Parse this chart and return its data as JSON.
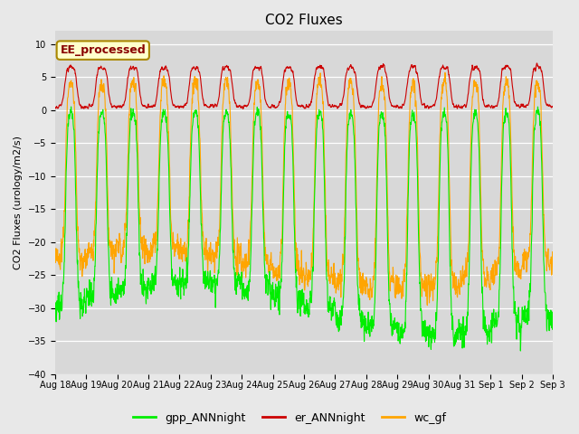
{
  "title": "CO2 Fluxes",
  "ylabel": "CO2 Fluxes (urology/m2/s)",
  "ylim": [
    -40,
    12
  ],
  "yticks": [
    -40,
    -35,
    -30,
    -25,
    -20,
    -15,
    -10,
    -5,
    0,
    5,
    10
  ],
  "fig_bg_color": "#e8e8e8",
  "plot_bg_color": "#d8d8d8",
  "n_days": 16,
  "points_per_day": 144,
  "gpp_color": "#00ee00",
  "er_color": "#cc0000",
  "wc_color": "#ffa500",
  "legend_labels": [
    "gpp_ANNnight",
    "er_ANNnight",
    "wc_gf"
  ],
  "annotation_text": "EE_processed",
  "annotation_color": "#880000",
  "annotation_bg": "#ffffcc",
  "annotation_border": "#aa8800",
  "title_fontsize": 11,
  "axis_fontsize": 8,
  "tick_fontsize": 7,
  "legend_fontsize": 9,
  "linewidth": 0.8
}
